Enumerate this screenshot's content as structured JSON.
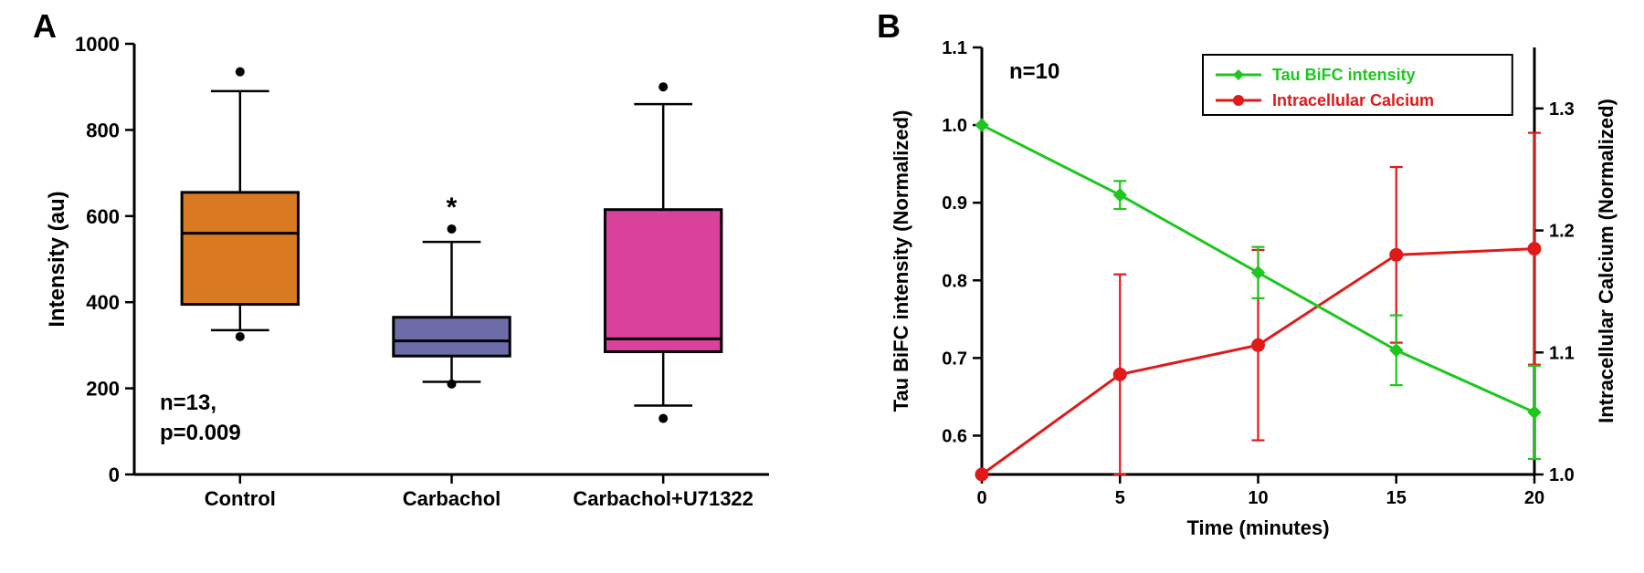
{
  "panelA": {
    "label": "A",
    "type": "boxplot",
    "ylabel": "Intensity (au)",
    "ylim": [
      0,
      1000
    ],
    "ytick_step": 200,
    "categories": [
      "Control",
      "Carbachol",
      "Carbachol+U71322"
    ],
    "boxes": [
      {
        "q1": 395,
        "median": 560,
        "q3": 655,
        "whisker_low": 335,
        "whisker_high": 890,
        "outlier_low": 320,
        "outlier_high": 935,
        "fill": "#d97a22"
      },
      {
        "q1": 275,
        "median": 310,
        "q3": 365,
        "whisker_low": 215,
        "whisker_high": 540,
        "outlier_low": 210,
        "outlier_high": 570,
        "fill": "#6b6ca8",
        "sig": "*"
      },
      {
        "q1": 285,
        "median": 315,
        "q3": 615,
        "whisker_low": 160,
        "whisker_high": 860,
        "outlier_low": 130,
        "outlier_high": 900,
        "fill": "#d9419a"
      }
    ],
    "annotation_n": "n=13,",
    "annotation_p": "p=0.009",
    "label_fontsize": 24,
    "tick_fontsize": 22,
    "bg": "#ffffff",
    "axis_color": "#000000",
    "box_stroke": "#000000",
    "box_stroke_width": 3,
    "whisker_stroke_width": 2.5,
    "outlier_radius": 5
  },
  "panelB": {
    "label": "B",
    "type": "line-dual-axis",
    "xlabel": "Time (minutes)",
    "ylabel_left": "Tau BiFC intensity (Normalized)",
    "ylabel_right": "Intracellular Calcium (Normalized)",
    "xlim": [
      0,
      20
    ],
    "xtick_step": 5,
    "ylim_left": [
      0.55,
      1.1
    ],
    "ytick_left_vals": [
      0.6,
      0.7,
      0.8,
      0.9,
      1.0,
      1.1
    ],
    "ylim_right": [
      1.0,
      1.35
    ],
    "ytick_right_vals": [
      1.0,
      1.1,
      1.2,
      1.3
    ],
    "legend": {
      "items": [
        {
          "label": "Tau BiFC intensity",
          "color": "#1fc61f",
          "marker": "diamond"
        },
        {
          "label": "Intracellular Calcium",
          "color": "#e01919",
          "marker": "circle"
        }
      ],
      "box_stroke": "#000000"
    },
    "annotation_n": "n=10",
    "series_tau": {
      "color": "#1fc61f",
      "line_width": 3,
      "marker_size": 7,
      "points": [
        {
          "x": 0,
          "y": 1.0,
          "err": 0.0
        },
        {
          "x": 5,
          "y": 0.91,
          "err": 0.018
        },
        {
          "x": 10,
          "y": 0.81,
          "err": 0.033
        },
        {
          "x": 15,
          "y": 0.71,
          "err": 0.045
        },
        {
          "x": 20,
          "y": 0.63,
          "err": 0.06
        }
      ]
    },
    "series_ca": {
      "color": "#e01919",
      "line_width": 3,
      "marker_size": 7,
      "points": [
        {
          "x": 0,
          "y": 1.0,
          "err": 0.0
        },
        {
          "x": 5,
          "y": 1.082,
          "err": 0.082
        },
        {
          "x": 10,
          "y": 1.106,
          "err": 0.078
        },
        {
          "x": 15,
          "y": 1.18,
          "err": 0.072
        },
        {
          "x": 20,
          "y": 1.185,
          "err": 0.095
        }
      ]
    },
    "label_fontsize": 22,
    "tick_fontsize": 20,
    "axis_color": "#000000",
    "bg": "#ffffff"
  }
}
